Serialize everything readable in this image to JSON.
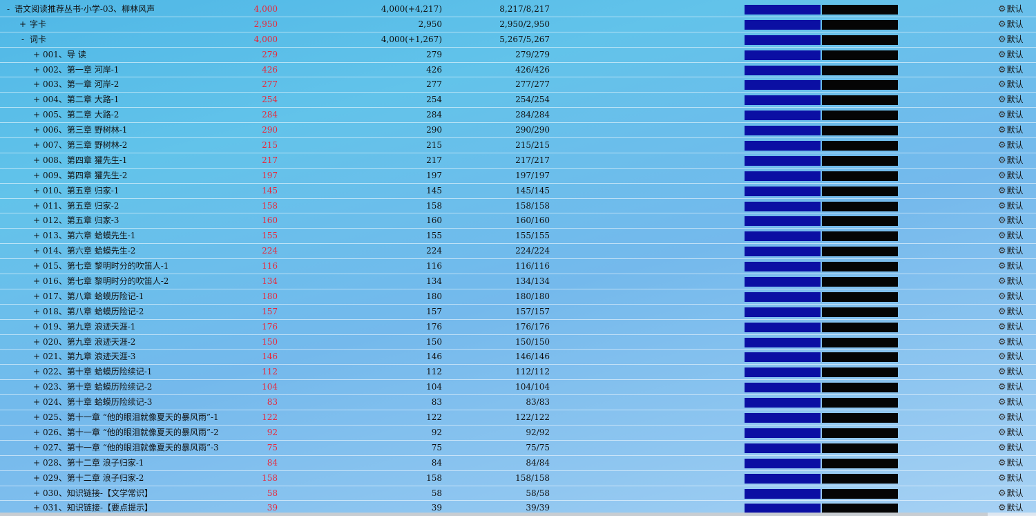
{
  "option_label": "默认",
  "colors": {
    "known_bar": "#0b0fa3",
    "unknown_bar": "#050505",
    "new_count": "#e8283b"
  },
  "rows": [
    {
      "level": 0,
      "toggle": "-",
      "title": "语文阅读推荐丛书·小学-03、柳林风声",
      "new": "4,000",
      "total": "4,000(+4,217)",
      "progress": "8,217/8,217"
    },
    {
      "level": 1,
      "toggle": "+",
      "title": "字卡",
      "new": "2,950",
      "total": "2,950",
      "progress": "2,950/2,950"
    },
    {
      "level": 1,
      "toggle": "-",
      "title": "词卡",
      "new": "4,000",
      "total": "4,000(+1,267)",
      "progress": "5,267/5,267"
    },
    {
      "level": 2,
      "toggle": "+",
      "title": "001、导 读",
      "new": "279",
      "total": "279",
      "progress": "279/279"
    },
    {
      "level": 2,
      "toggle": "+",
      "title": "002、第一章 河岸-1",
      "new": "426",
      "total": "426",
      "progress": "426/426"
    },
    {
      "level": 2,
      "toggle": "+",
      "title": "003、第一章 河岸-2",
      "new": "277",
      "total": "277",
      "progress": "277/277"
    },
    {
      "level": 2,
      "toggle": "+",
      "title": "004、第二章 大路-1",
      "new": "254",
      "total": "254",
      "progress": "254/254"
    },
    {
      "level": 2,
      "toggle": "+",
      "title": "005、第二章 大路-2",
      "new": "284",
      "total": "284",
      "progress": "284/284"
    },
    {
      "level": 2,
      "toggle": "+",
      "title": "006、第三章 野树林-1",
      "new": "290",
      "total": "290",
      "progress": "290/290"
    },
    {
      "level": 2,
      "toggle": "+",
      "title": "007、第三章 野树林-2",
      "new": "215",
      "total": "215",
      "progress": "215/215"
    },
    {
      "level": 2,
      "toggle": "+",
      "title": "008、第四章 獾先生-1",
      "new": "217",
      "total": "217",
      "progress": "217/217"
    },
    {
      "level": 2,
      "toggle": "+",
      "title": "009、第四章 獾先生-2",
      "new": "197",
      "total": "197",
      "progress": "197/197"
    },
    {
      "level": 2,
      "toggle": "+",
      "title": "010、第五章 归家-1",
      "new": "145",
      "total": "145",
      "progress": "145/145"
    },
    {
      "level": 2,
      "toggle": "+",
      "title": "011、第五章 归家-2",
      "new": "158",
      "total": "158",
      "progress": "158/158"
    },
    {
      "level": 2,
      "toggle": "+",
      "title": "012、第五章 归家-3",
      "new": "160",
      "total": "160",
      "progress": "160/160"
    },
    {
      "level": 2,
      "toggle": "+",
      "title": "013、第六章 蛤蟆先生-1",
      "new": "155",
      "total": "155",
      "progress": "155/155"
    },
    {
      "level": 2,
      "toggle": "+",
      "title": "014、第六章 蛤蟆先生-2",
      "new": "224",
      "total": "224",
      "progress": "224/224"
    },
    {
      "level": 2,
      "toggle": "+",
      "title": "015、第七章 黎明时分的吹笛人-1",
      "new": "116",
      "total": "116",
      "progress": "116/116"
    },
    {
      "level": 2,
      "toggle": "+",
      "title": "016、第七章 黎明时分的吹笛人-2",
      "new": "134",
      "total": "134",
      "progress": "134/134"
    },
    {
      "level": 2,
      "toggle": "+",
      "title": "017、第八章 蛤蟆历险记-1",
      "new": "180",
      "total": "180",
      "progress": "180/180"
    },
    {
      "level": 2,
      "toggle": "+",
      "title": "018、第八章 蛤蟆历险记-2",
      "new": "157",
      "total": "157",
      "progress": "157/157"
    },
    {
      "level": 2,
      "toggle": "+",
      "title": "019、第九章 浪迹天涯-1",
      "new": "176",
      "total": "176",
      "progress": "176/176"
    },
    {
      "level": 2,
      "toggle": "+",
      "title": "020、第九章 浪迹天涯-2",
      "new": "150",
      "total": "150",
      "progress": "150/150"
    },
    {
      "level": 2,
      "toggle": "+",
      "title": "021、第九章 浪迹天涯-3",
      "new": "146",
      "total": "146",
      "progress": "146/146"
    },
    {
      "level": 2,
      "toggle": "+",
      "title": "022、第十章 蛤蟆历险续记-1",
      "new": "112",
      "total": "112",
      "progress": "112/112"
    },
    {
      "level": 2,
      "toggle": "+",
      "title": "023、第十章 蛤蟆历险续记-2",
      "new": "104",
      "total": "104",
      "progress": "104/104"
    },
    {
      "level": 2,
      "toggle": "+",
      "title": "024、第十章 蛤蟆历险续记-3",
      "new": "83",
      "total": "83",
      "progress": "83/83"
    },
    {
      "level": 2,
      "toggle": "+",
      "title": "025、第十一章 “他的眼泪就像夏天的暴风雨”-1",
      "new": "122",
      "total": "122",
      "progress": "122/122"
    },
    {
      "level": 2,
      "toggle": "+",
      "title": "026、第十一章 “他的眼泪就像夏天的暴风雨”-2",
      "new": "92",
      "total": "92",
      "progress": "92/92"
    },
    {
      "level": 2,
      "toggle": "+",
      "title": "027、第十一章 “他的眼泪就像夏天的暴风雨”-3",
      "new": "75",
      "total": "75",
      "progress": "75/75"
    },
    {
      "level": 2,
      "toggle": "+",
      "title": "028、第十二章 浪子归家-1",
      "new": "84",
      "total": "84",
      "progress": "84/84"
    },
    {
      "level": 2,
      "toggle": "+",
      "title": "029、第十二章 浪子归家-2",
      "new": "158",
      "total": "158",
      "progress": "158/158"
    },
    {
      "level": 2,
      "toggle": "+",
      "title": "030、知识链接-【文学常识】",
      "new": "58",
      "total": "58",
      "progress": "58/58"
    },
    {
      "level": 2,
      "toggle": "+",
      "title": "031、知识链接-【要点提示】",
      "new": "39",
      "total": "39",
      "progress": "39/39"
    }
  ]
}
